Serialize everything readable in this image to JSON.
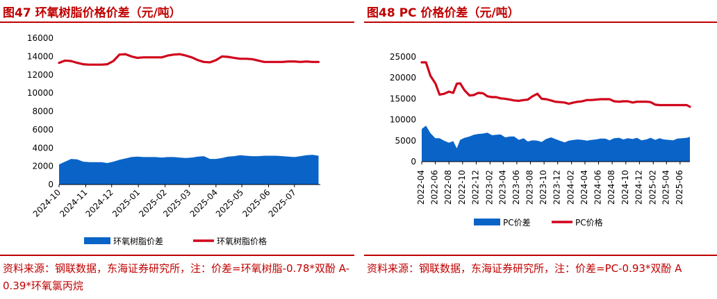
{
  "left": {
    "figure_title": "图47  环氧树脂价格价差（元/吨）",
    "source": "资料来源：钢联数据，东海证券研究所，注：价差=环氧树脂-0.78*双酚 A-0.39*环氧氯丙烷",
    "colors": {
      "spread": "#0a64c8",
      "price": "#d0021b"
    },
    "chart_data": {
      "type": "area",
      "ylim": [
        0,
        16000
      ],
      "yticks": [
        0,
        2000,
        4000,
        6000,
        8000,
        10000,
        12000,
        14000,
        16000
      ],
      "x_start": "2024-10-01",
      "x_end": "2025-07-31",
      "xtick_labels": [
        "2024-10",
        "2024-11",
        "2024-12",
        "2025-01",
        "2025-02",
        "2025-03",
        "2025-04",
        "2025-05",
        "2025-06",
        "2025-07"
      ],
      "legend_position": "bottom",
      "series": [
        {
          "name": "环氧树脂价差",
          "kind": "area",
          "x": [
            "2024-10-01",
            "2024-10-08",
            "2024-10-15",
            "2024-10-22",
            "2024-10-29",
            "2024-11-05",
            "2024-11-12",
            "2024-11-19",
            "2024-11-26",
            "2024-12-03",
            "2024-12-10",
            "2024-12-17",
            "2024-12-24",
            "2024-12-31",
            "2025-01-07",
            "2025-01-14",
            "2025-01-21",
            "2025-01-28",
            "2025-02-04",
            "2025-02-11",
            "2025-02-18",
            "2025-02-25",
            "2025-03-04",
            "2025-03-11",
            "2025-03-18",
            "2025-03-25",
            "2025-04-01",
            "2025-04-08",
            "2025-04-15",
            "2025-04-22",
            "2025-04-29",
            "2025-05-06",
            "2025-05-13",
            "2025-05-20",
            "2025-05-27",
            "2025-06-03",
            "2025-06-10",
            "2025-06-17",
            "2025-06-24",
            "2025-07-01",
            "2025-07-08",
            "2025-07-15",
            "2025-07-22",
            "2025-07-29"
          ],
          "y": [
            2200,
            2500,
            2800,
            2750,
            2500,
            2450,
            2450,
            2450,
            2350,
            2500,
            2700,
            2850,
            3000,
            3050,
            3000,
            3000,
            3000,
            2950,
            3000,
            3000,
            2950,
            2900,
            2950,
            3050,
            3100,
            2800,
            2800,
            2900,
            3050,
            3100,
            3200,
            3150,
            3100,
            3100,
            3150,
            3150,
            3150,
            3100,
            3050,
            3000,
            3100,
            3200,
            3250,
            3150
          ]
        },
        {
          "name": "环氧树脂价格",
          "kind": "line",
          "x": [
            "2024-10-01",
            "2024-10-08",
            "2024-10-15",
            "2024-10-22",
            "2024-10-29",
            "2024-11-05",
            "2024-11-12",
            "2024-11-19",
            "2024-11-26",
            "2024-12-03",
            "2024-12-10",
            "2024-12-17",
            "2024-12-24",
            "2024-12-31",
            "2025-01-07",
            "2025-01-14",
            "2025-01-21",
            "2025-01-28",
            "2025-02-04",
            "2025-02-11",
            "2025-02-18",
            "2025-02-25",
            "2025-03-04",
            "2025-03-11",
            "2025-03-18",
            "2025-03-25",
            "2025-04-01",
            "2025-04-08",
            "2025-04-15",
            "2025-04-22",
            "2025-04-29",
            "2025-05-06",
            "2025-05-13",
            "2025-05-20",
            "2025-05-27",
            "2025-06-03",
            "2025-06-10",
            "2025-06-17",
            "2025-06-24",
            "2025-07-01",
            "2025-07-08",
            "2025-07-15",
            "2025-07-22",
            "2025-07-29"
          ],
          "y": [
            13300,
            13550,
            13500,
            13300,
            13150,
            13100,
            13100,
            13100,
            13150,
            13500,
            14200,
            14250,
            14000,
            13850,
            13900,
            13900,
            13900,
            13900,
            14100,
            14200,
            14250,
            14100,
            13900,
            13600,
            13400,
            13350,
            13600,
            14000,
            13950,
            13850,
            13750,
            13750,
            13700,
            13550,
            13400,
            13400,
            13400,
            13400,
            13450,
            13450,
            13400,
            13450,
            13400,
            13400
          ]
        }
      ]
    }
  },
  "right": {
    "figure_title": "图48  PC 价格价差（元/吨）",
    "source": "资料来源：钢联数据，东海证券研究所，注：价差=PC-0.93*双酚 A",
    "colors": {
      "spread": "#0a64c8",
      "price": "#d0021b"
    },
    "chart_data": {
      "type": "area",
      "ylim": [
        0,
        25000
      ],
      "yticks": [
        0,
        5000,
        10000,
        15000,
        20000,
        25000
      ],
      "x_start": "2022-04-01",
      "x_end": "2025-07-15",
      "xtick_labels": [
        "2022-04",
        "2022-06",
        "2022-08",
        "2022-10",
        "2022-12",
        "2023-02",
        "2023-04",
        "2023-06",
        "2023-08",
        "2023-10",
        "2023-12",
        "2024-02",
        "2024-04",
        "2024-06",
        "2024-08",
        "2024-10",
        "2024-12",
        "2025-02",
        "2025-04",
        "2025-06"
      ],
      "legend_position": "bottom",
      "series": [
        {
          "name": "PC价差",
          "kind": "area",
          "x": [
            "2022-04-01",
            "2022-04-20",
            "2022-05-10",
            "2022-06-01",
            "2022-06-20",
            "2022-07-10",
            "2022-08-01",
            "2022-08-20",
            "2022-09-05",
            "2022-09-20",
            "2022-10-10",
            "2022-11-01",
            "2022-11-20",
            "2022-12-10",
            "2023-01-01",
            "2023-01-20",
            "2023-02-10",
            "2023-03-01",
            "2023-03-20",
            "2023-04-10",
            "2023-05-01",
            "2023-05-20",
            "2023-06-10",
            "2023-07-01",
            "2023-07-20",
            "2023-08-10",
            "2023-09-01",
            "2023-09-20",
            "2023-10-10",
            "2023-11-01",
            "2023-11-20",
            "2023-12-10",
            "2024-01-01",
            "2024-01-20",
            "2024-02-10",
            "2024-03-01",
            "2024-03-20",
            "2024-04-10",
            "2024-05-01",
            "2024-05-20",
            "2024-06-10",
            "2024-07-01",
            "2024-07-20",
            "2024-08-10",
            "2024-09-01",
            "2024-09-20",
            "2024-10-10",
            "2024-11-01",
            "2024-11-20",
            "2024-12-10",
            "2025-01-01",
            "2025-01-20",
            "2025-02-10",
            "2025-03-01",
            "2025-03-20",
            "2025-04-10",
            "2025-05-01",
            "2025-05-20",
            "2025-06-10",
            "2025-07-01",
            "2025-07-15"
          ],
          "y": [
            7800,
            8600,
            6800,
            5600,
            5600,
            5000,
            4500,
            4900,
            3200,
            5200,
            5700,
            6000,
            6400,
            6600,
            6700,
            6900,
            6300,
            6400,
            6500,
            5800,
            6000,
            6000,
            5200,
            5600,
            4800,
            5100,
            5000,
            4700,
            5400,
            5800,
            5400,
            5000,
            4600,
            5000,
            5200,
            5300,
            5200,
            5000,
            5200,
            5300,
            5500,
            5500,
            5100,
            5600,
            5700,
            5300,
            5600,
            5400,
            5700,
            5100,
            5300,
            5700,
            5200,
            5600,
            5300,
            5200,
            5100,
            5500,
            5600,
            5700,
            5900
          ]
        },
        {
          "name": "PC价格",
          "kind": "line",
          "x": [
            "2022-04-01",
            "2022-04-20",
            "2022-05-10",
            "2022-06-01",
            "2022-06-20",
            "2022-07-10",
            "2022-08-01",
            "2022-08-20",
            "2022-09-05",
            "2022-09-20",
            "2022-10-10",
            "2022-11-01",
            "2022-11-20",
            "2022-12-10",
            "2023-01-01",
            "2023-01-20",
            "2023-02-10",
            "2023-03-01",
            "2023-03-20",
            "2023-04-10",
            "2023-05-01",
            "2023-05-20",
            "2023-06-10",
            "2023-07-01",
            "2023-07-20",
            "2023-08-10",
            "2023-09-01",
            "2023-09-20",
            "2023-10-10",
            "2023-11-01",
            "2023-11-20",
            "2023-12-10",
            "2024-01-01",
            "2024-01-20",
            "2024-02-10",
            "2024-03-01",
            "2024-03-20",
            "2024-04-10",
            "2024-05-01",
            "2024-05-20",
            "2024-06-10",
            "2024-07-01",
            "2024-07-20",
            "2024-08-10",
            "2024-09-01",
            "2024-09-20",
            "2024-10-10",
            "2024-11-01",
            "2024-11-20",
            "2024-12-10",
            "2025-01-01",
            "2025-01-20",
            "2025-02-10",
            "2025-03-01",
            "2025-03-20",
            "2025-04-10",
            "2025-05-01",
            "2025-05-20",
            "2025-06-10",
            "2025-07-01",
            "2025-07-15"
          ],
          "y": [
            23700,
            23700,
            20500,
            18700,
            16000,
            16200,
            16700,
            16400,
            18600,
            18700,
            17000,
            15800,
            15900,
            16400,
            16300,
            15600,
            15400,
            15400,
            15100,
            15000,
            14800,
            14600,
            14500,
            14700,
            14800,
            15600,
            16200,
            15000,
            14900,
            14600,
            14300,
            14200,
            14100,
            13800,
            14100,
            14300,
            14400,
            14700,
            14700,
            14800,
            14900,
            14900,
            14900,
            14400,
            14300,
            14400,
            14400,
            14100,
            14300,
            14300,
            14300,
            14200,
            13600,
            13500,
            13500,
            13500,
            13500,
            13500,
            13500,
            13500,
            13100
          ]
        }
      ]
    }
  }
}
